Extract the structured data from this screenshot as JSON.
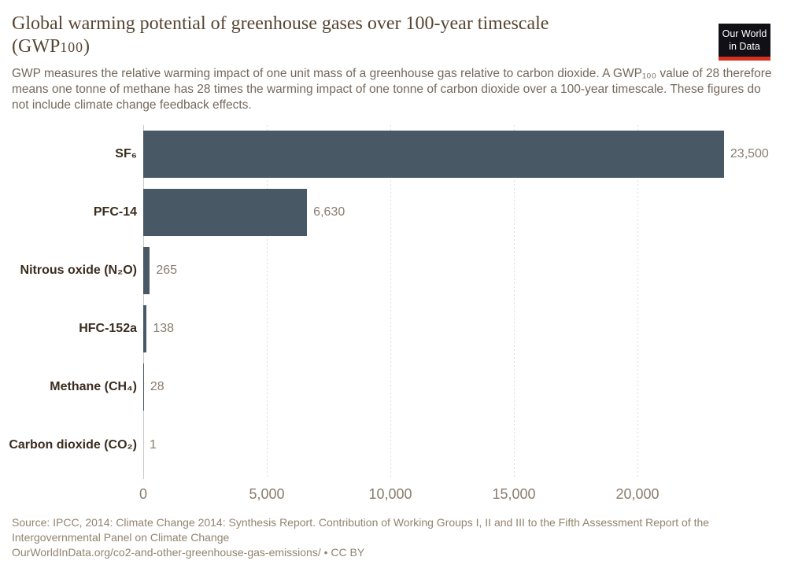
{
  "header": {
    "title_line1": "Global warming potential of greenhouse gases over 100-year timescale",
    "title_paren_prefix": "(GWP",
    "title_paren_num": "100",
    "title_paren_suffix": ")",
    "subtitle": "GWP measures the relative warming impact of one unit mass of a greenhouse gas relative to carbon dioxide. A GWP₁₀₀ value of 28 therefore means one tonne of methane has 28 times the warming impact of one tonne of carbon dioxide over a 100-year timescale. These figures do not include climate change feedback effects."
  },
  "logo": {
    "line1": "Our World",
    "line2": "in Data"
  },
  "chart_data": {
    "type": "bar",
    "orientation": "horizontal",
    "title": "Global warming potential of greenhouse gases over 100-year timescale (GWP100)",
    "categories": [
      "SF₆",
      "PFC-14",
      "Nitrous oxide (N₂O)",
      "HFC-152a",
      "Methane (CH₄)",
      "Carbon dioxide (CO₂)"
    ],
    "values": [
      23500,
      6630,
      265,
      138,
      28,
      1
    ],
    "value_labels": [
      "23,500",
      "6,630",
      "265",
      "138",
      "28",
      "1"
    ],
    "xticks": {
      "values": [
        0,
        5000,
        10000,
        15000,
        20000
      ],
      "labels": [
        "0",
        "5,000",
        "10,000",
        "15,000",
        "20,000"
      ]
    },
    "xlim": [
      0,
      23500
    ],
    "xlabel": "",
    "ylabel": "",
    "grid": true,
    "legend": "none",
    "bar_color": "#485864"
  },
  "footer": {
    "source_text": "Source: IPCC, 2014: Climate Change 2014: Synthesis Report. Contribution of Working Groups I, II and III to the Fifth Assessment Report of the Intergovernmental Panel on Climate Change",
    "link_text": "OurWorldInData.org/co2-and-other-greenhouse-gas-emissions/ • CC BY"
  },
  "colors": {
    "bar": "#485864",
    "title": "#574531",
    "category_label": "#3a2d1f",
    "value_label": "#897d6e",
    "tick_label": "#897d6e",
    "subtitle": "#75695c",
    "source": "#92846f",
    "grid": "#dedede",
    "axis": "#c9c9c9",
    "logo_bg": "#101016",
    "logo_red": "#d7301f"
  }
}
